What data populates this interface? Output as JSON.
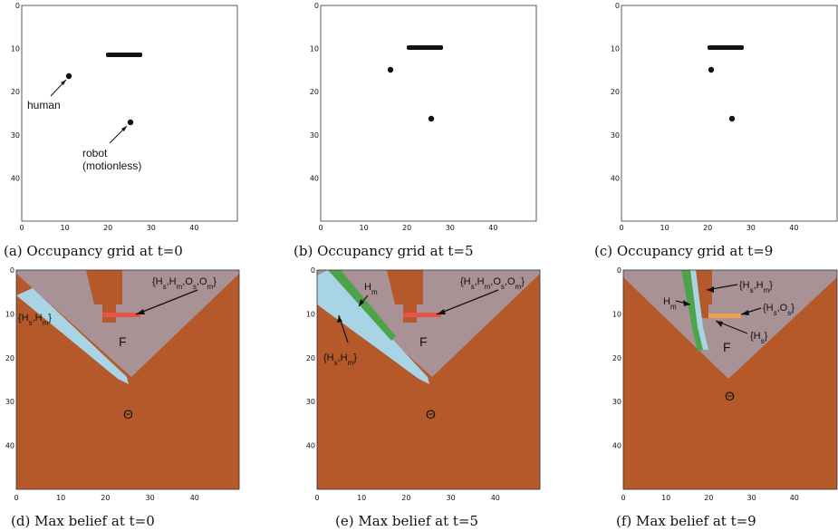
{
  "axis_ticks": [
    "0",
    "10",
    "20",
    "30",
    "40"
  ],
  "panels": [
    {
      "id": "a",
      "caption": "(a) Occupancy grid at t=0",
      "annotations": {
        "human": "human",
        "robot_line1": "robot",
        "robot_line2": "(motionless)"
      }
    },
    {
      "id": "b",
      "caption": "(b) Occupancy grid at t=5"
    },
    {
      "id": "c",
      "caption": "(c) Occupancy grid at t=9"
    },
    {
      "id": "d",
      "caption": "(d) Max belief at t=0",
      "labels": {
        "F": "F",
        "Theta": "Θ"
      }
    },
    {
      "id": "e",
      "caption": "(e) Max belief at t=5",
      "labels": {
        "F": "F",
        "Theta": "Θ",
        "Hm": "Hm"
      }
    },
    {
      "id": "f",
      "caption": "(f) Max belief at t=9",
      "labels": {
        "F": "F",
        "Theta": "Θ",
        "Hm": "Hm",
        "Hs": "{Hs}"
      }
    }
  ],
  "colors": {
    "theta_region": "#b5592a",
    "free_region": "#a89295",
    "hs_hm_region": "#a8d4e6",
    "hm_region": "#4da34a",
    "obstacle_line": "#e8524a",
    "hs_os_region": "#f0a050",
    "occupancy_mark": "#111111"
  }
}
